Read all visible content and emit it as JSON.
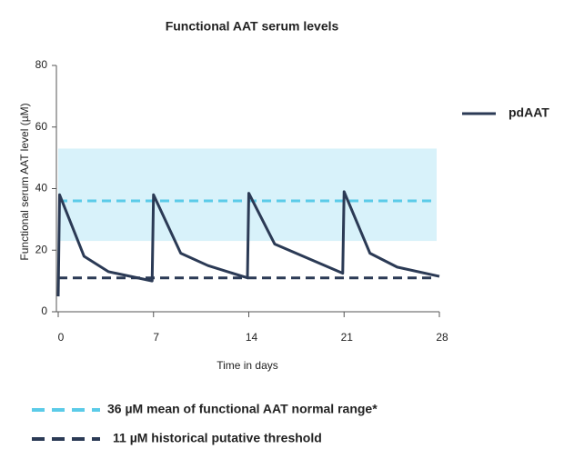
{
  "chart_data": {
    "type": "line",
    "title": "Functional AAT serum levels",
    "x_label": "Time in days",
    "y_label": "Functional serum AAT level (µM)",
    "x": [
      0,
      0.1,
      1.9,
      3.7,
      6.9,
      7,
      9,
      11,
      13.9,
      14,
      15.9,
      20.9,
      21,
      22.9,
      24.9,
      28
    ],
    "series": [
      {
        "name": "pdAAT",
        "color": "#2b3a55",
        "values": [
          5,
          38,
          18,
          13,
          10,
          38,
          19,
          15,
          11,
          38.5,
          22,
          12.5,
          39,
          19,
          14.5,
          11.5
        ]
      }
    ],
    "normal_range": {
      "values": [
        23,
        53
      ],
      "color": "#d8f2fa"
    },
    "reference_lines": [
      {
        "label": "36 µM mean of functional AAT normal range*",
        "value": 36,
        "color": "#5bcbe8"
      },
      {
        "label": "11 µM historical putative threshold",
        "value": 11,
        "color": "#2b3a55"
      }
    ],
    "xlim": [
      0,
      28
    ],
    "xticks": [
      0,
      7,
      14,
      21,
      28
    ],
    "ylim": [
      0,
      80
    ],
    "yticks": [
      0,
      20,
      40,
      60,
      80
    ],
    "legend": "right"
  }
}
